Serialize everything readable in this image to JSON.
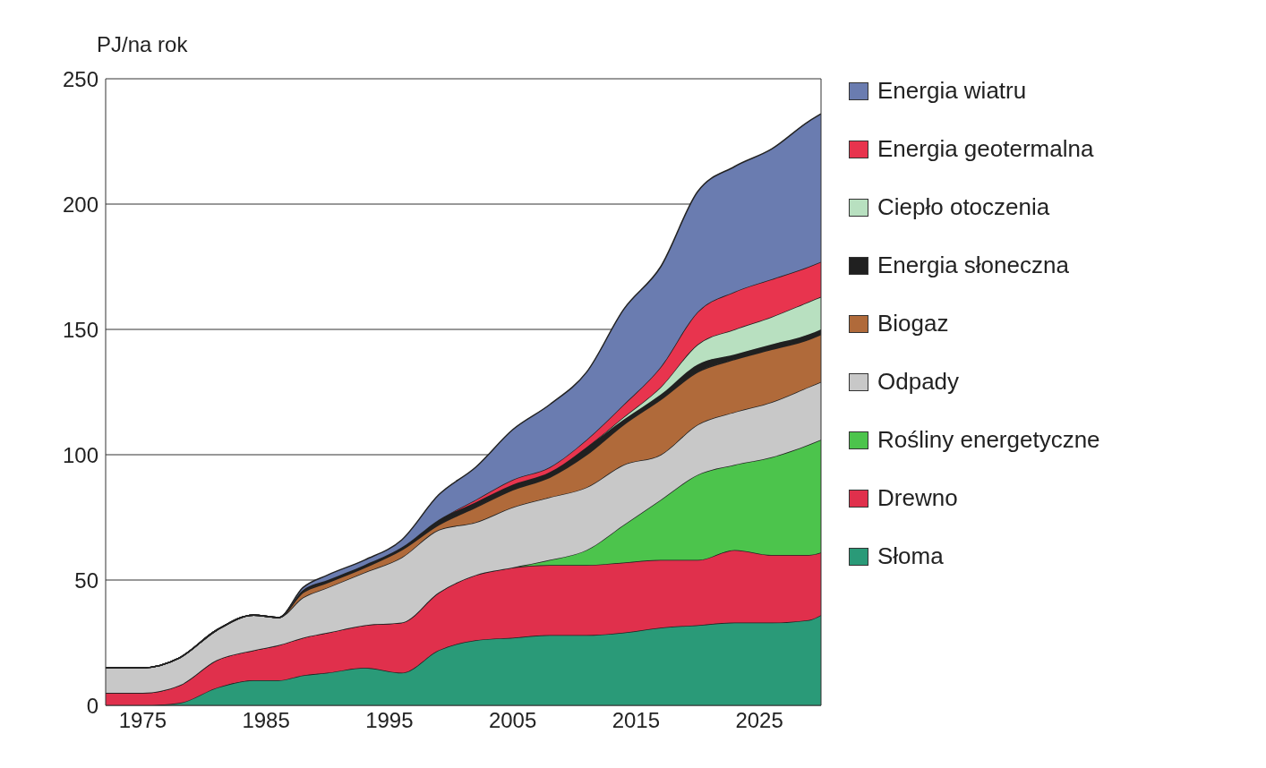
{
  "chart_data": {
    "type": "area",
    "stacked": true,
    "ylabel": "PJ/na rok",
    "x": [
      1972,
      1975,
      1978,
      1981,
      1984,
      1986,
      1988,
      1990,
      1993,
      1996,
      1999,
      2002,
      2005,
      2008,
      2011,
      2014,
      2017,
      2020,
      2023,
      2026,
      2029,
      2030
    ],
    "xlim": [
      1972,
      2030
    ],
    "xticks": [
      1975,
      1985,
      1995,
      2005,
      2015,
      2025
    ],
    "ylim": [
      0,
      250
    ],
    "yticks": [
      0,
      50,
      100,
      150,
      200,
      250
    ],
    "grid": "y",
    "legend": "right",
    "series": [
      {
        "name": "Słoma",
        "color": "#2a9a78",
        "values": [
          0,
          0,
          1,
          7,
          10,
          10,
          12,
          13,
          15,
          13,
          22,
          26,
          27,
          28,
          28,
          29,
          31,
          32,
          33,
          33,
          34,
          36
        ]
      },
      {
        "name": "Drewno",
        "color": "#e0304c",
        "values": [
          5,
          5,
          7,
          11,
          12,
          14,
          15,
          16,
          17,
          20,
          23,
          26,
          28,
          28,
          28,
          28,
          27,
          26,
          29,
          27,
          26,
          25
        ]
      },
      {
        "name": "Rośliny energetyczne",
        "color": "#4cc44c",
        "values": [
          0,
          0,
          0,
          0,
          0,
          0,
          0,
          0,
          0,
          0,
          0,
          0,
          0,
          2,
          6,
          15,
          24,
          34,
          34,
          39,
          44,
          45
        ]
      },
      {
        "name": "Odpady",
        "color": "#c8c8c8",
        "values": [
          10,
          10,
          11,
          12,
          14,
          11,
          16,
          18,
          21,
          26,
          25,
          21,
          24,
          25,
          25,
          24,
          18,
          20,
          21,
          22,
          23,
          23
        ]
      },
      {
        "name": "Biogaz",
        "color": "#b06a3a",
        "values": [
          0,
          0,
          0,
          0,
          0,
          0,
          2,
          2,
          2,
          3,
          2,
          6,
          7,
          8,
          13,
          16,
          22,
          21,
          21,
          21,
          19,
          19
        ]
      },
      {
        "name": "Energia słoneczna",
        "color": "#202020",
        "values": [
          0,
          0,
          0,
          0,
          0,
          0,
          1,
          1,
          1,
          1,
          2,
          2,
          2,
          2,
          3,
          2,
          2,
          3,
          2,
          2,
          2,
          2
        ]
      },
      {
        "name": "Ciepło otoczenia",
        "color": "#b8e0c0",
        "values": [
          0,
          0,
          0,
          0,
          0,
          0,
          0,
          0,
          0,
          0,
          0,
          0,
          0,
          0,
          0,
          1,
          3,
          8,
          10,
          11,
          13,
          13
        ]
      },
      {
        "name": "Energia geotermalna",
        "color": "#e8344e",
        "values": [
          0,
          0,
          0,
          0,
          0,
          0,
          0,
          0,
          0,
          0,
          0,
          1,
          2,
          2,
          3,
          5,
          8,
          13,
          15,
          15,
          14,
          14
        ]
      },
      {
        "name": "Energia wiatru",
        "color": "#6a7cb0",
        "values": [
          0,
          0,
          0,
          0,
          0,
          0,
          1,
          2,
          2,
          3,
          10,
          13,
          20,
          25,
          27,
          38,
          40,
          48,
          50,
          52,
          58,
          59
        ]
      }
    ]
  }
}
